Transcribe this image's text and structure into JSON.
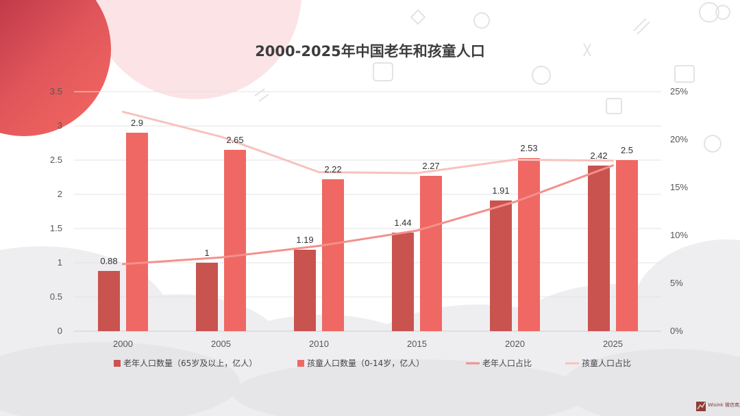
{
  "chart_data": {
    "type": "bar",
    "title": "2000-2025年中国老年和孩童人口",
    "categories": [
      "2000",
      "2005",
      "2010",
      "2015",
      "2020",
      "2025"
    ],
    "y_left": {
      "min": 0,
      "max": 3.5,
      "step": 0.5,
      "ticks": [
        "0",
        "0.5",
        "1",
        "1.5",
        "2",
        "2.5",
        "3",
        "3.5"
      ]
    },
    "y_right": {
      "min": 0,
      "max": 25,
      "step": 5,
      "ticks": [
        "0%",
        "5%",
        "10%",
        "15%",
        "20%",
        "25%"
      ]
    },
    "series": [
      {
        "name": "老年人口数量（65岁及以上，亿人）",
        "kind": "bar",
        "axis": "left",
        "color": "#c9534f",
        "values": [
          0.88,
          1,
          1.19,
          1.44,
          1.91,
          2.42
        ],
        "labels": [
          "0.88",
          "1",
          "1.19",
          "1.44",
          "1.91",
          "2.42"
        ]
      },
      {
        "name": "孩童人口数量（0-14岁，亿人）",
        "kind": "bar",
        "axis": "left",
        "color": "#ef6863",
        "values": [
          2.9,
          2.65,
          2.22,
          2.27,
          2.53,
          2.5
        ],
        "labels": [
          "2.9",
          "2.65",
          "2.22",
          "2.27",
          "2.53",
          "2.5"
        ]
      },
      {
        "name": "老年人口占比",
        "kind": "line",
        "axis": "right",
        "color": "#f4908c",
        "values": [
          7.0,
          7.7,
          8.9,
          10.5,
          13.5,
          17.3
        ]
      },
      {
        "name": "孩童人口占比",
        "kind": "line",
        "axis": "right",
        "color": "#f8c1bd",
        "values": [
          22.9,
          20.3,
          16.6,
          16.5,
          17.9,
          17.8
        ]
      }
    ],
    "grid": true,
    "legend_position": "bottom"
  },
  "brand": {
    "text": "Wisink 微信商声"
  },
  "colors": {
    "circle_dark": "#a5213b",
    "circle_light": "#f56a62",
    "pink_blob": "#fbe3e6",
    "clouds": "#eeeef0"
  }
}
